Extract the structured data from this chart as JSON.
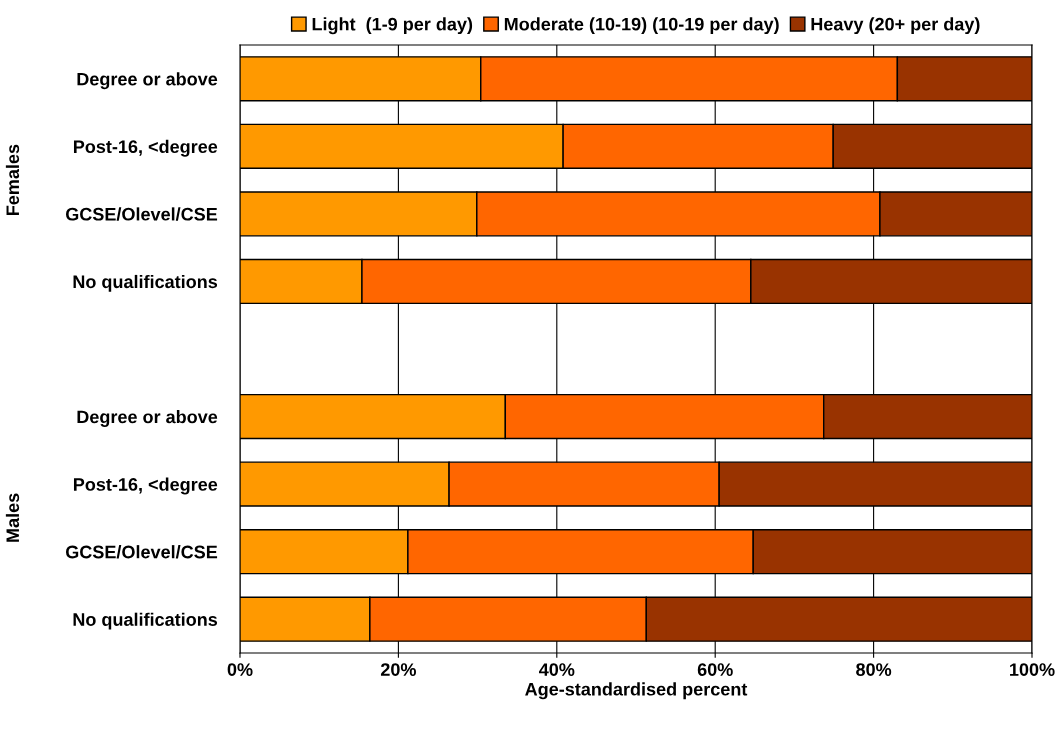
{
  "chart_data": {
    "type": "bar",
    "orientation": "horizontal",
    "stacked": true,
    "categories": [
      "Degree or above",
      "Post-16, <degree",
      "GCSE/Olevel/CSE",
      "No qualifications",
      null,
      "Degree or above",
      "Post-16, <degree",
      "GCSE/Olevel/CSE",
      "No qualifications"
    ],
    "series": [
      {
        "name": "Light  (1-9 per day)",
        "color": "#ff9900",
        "values": [
          30.4,
          40.8,
          29.9,
          15.4,
          null,
          33.5,
          26.4,
          21.2,
          16.4
        ]
      },
      {
        "name": "Moderate (10-19) (10-19 per day)",
        "color": "#ff6600",
        "values": [
          52.6,
          34.1,
          50.9,
          49.1,
          null,
          40.2,
          34.1,
          43.6,
          34.9
        ]
      },
      {
        "name": "Heavy (20+ per day)",
        "color": "#993300",
        "values": [
          17.0,
          25.1,
          19.2,
          35.5,
          null,
          26.3,
          39.5,
          35.2,
          48.7
        ]
      }
    ],
    "xlim": [
      0,
      100
    ],
    "xticks": [
      {
        "value": 0,
        "label": "0%"
      },
      {
        "value": 20,
        "label": "20%"
      },
      {
        "value": 40,
        "label": "40%"
      },
      {
        "value": 60,
        "label": "60%"
      },
      {
        "value": 80,
        "label": "80%"
      },
      {
        "value": 100,
        "label": "100%"
      }
    ],
    "xlabel": "Age-standardised percent",
    "annotations": [
      "Females",
      "Males"
    ],
    "grid": "x",
    "legend": "top"
  }
}
